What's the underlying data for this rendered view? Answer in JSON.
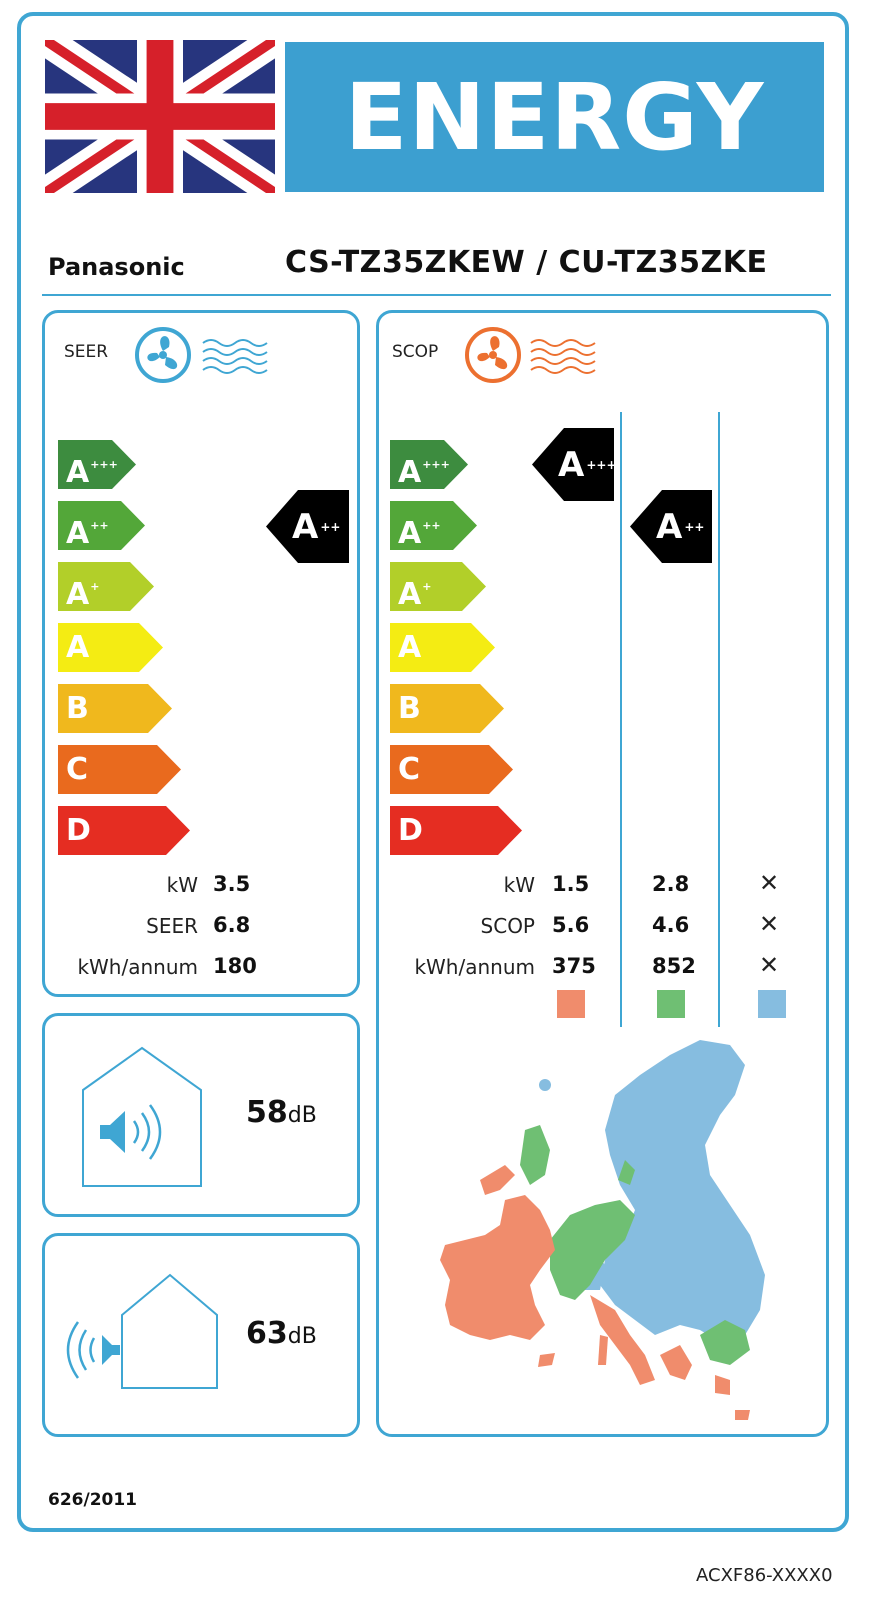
{
  "header": {
    "title": "ENERGY",
    "flag": "uk-flag"
  },
  "product": {
    "brand": "Panasonic",
    "model": "CS-TZ35ZKEW / CU-TZ35ZKE"
  },
  "scale_classes": [
    {
      "letter": "A",
      "plus": "+++",
      "color": "#3d8c3f"
    },
    {
      "letter": "A",
      "plus": "++",
      "color": "#53a739"
    },
    {
      "letter": "A",
      "plus": "+",
      "color": "#b2cf29"
    },
    {
      "letter": "A",
      "plus": "",
      "color": "#f4ec13"
    },
    {
      "letter": "B",
      "plus": "",
      "color": "#f0b81d"
    },
    {
      "letter": "C",
      "plus": "",
      "color": "#e96a1e"
    },
    {
      "letter": "D",
      "plus": "",
      "color": "#e52d22"
    }
  ],
  "seer_panel": {
    "label": "SEER",
    "icon": "cooling-fan-icon",
    "icon_color": "#3fa6d3",
    "rating": {
      "letter": "A",
      "plus": "++"
    },
    "rows": [
      {
        "label": "kW",
        "value": "3.5"
      },
      {
        "label": "SEER",
        "value": "6.8"
      },
      {
        "label": "kWh/annum",
        "value": "180"
      }
    ]
  },
  "scop_panel": {
    "label": "SCOP",
    "icon": "heating-fan-icon",
    "icon_color": "#ec7030",
    "ratings": [
      {
        "letter": "A",
        "plus": "+++"
      },
      {
        "letter": "A",
        "plus": "++"
      }
    ],
    "rows": [
      {
        "label": "kW",
        "warm": "1.5",
        "average": "2.8",
        "cold": "✕"
      },
      {
        "label": "SCOP",
        "warm": "5.6",
        "average": "4.6",
        "cold": "✕"
      },
      {
        "label": "kWh/annum",
        "warm": "375",
        "average": "852",
        "cold": "✕"
      }
    ],
    "zone_colors": [
      "#f08c6c",
      "#6fbf73",
      "#86bde0"
    ]
  },
  "noise": [
    {
      "icon": "indoor-sound-icon",
      "value": "58",
      "unit": "dB"
    },
    {
      "icon": "outdoor-sound-icon",
      "value": "63",
      "unit": "dB"
    }
  ],
  "footer": {
    "regulation": "626/2011",
    "code": "ACXF86-XXXX0"
  }
}
